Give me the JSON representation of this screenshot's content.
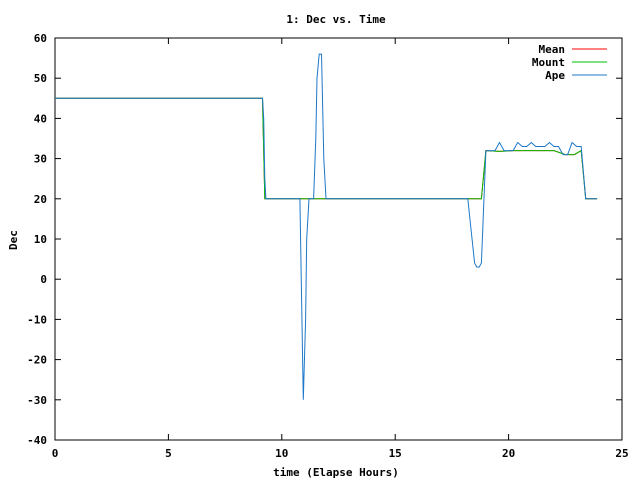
{
  "chart_data": {
    "type": "line",
    "title": "1: Dec vs. Time",
    "xlabel": "time (Elapse Hours)",
    "ylabel": "Dec",
    "xlim": [
      0,
      25
    ],
    "ylim": [
      -40,
      60
    ],
    "xticks": [
      0,
      5,
      10,
      15,
      20,
      25
    ],
    "yticks": [
      -40,
      -30,
      -20,
      -10,
      0,
      10,
      20,
      30,
      40,
      50,
      60
    ],
    "grid": false,
    "legend_position": "top-right",
    "series": [
      {
        "name": "Mean",
        "color": "#ff0000",
        "x": [
          0,
          9.15,
          9.25,
          18.3,
          18.8,
          19.0,
          19.6,
          20.2,
          21.0,
          22.0,
          22.5,
          22.9,
          23.2,
          23.4,
          23.9
        ],
        "y": [
          45,
          45,
          20,
          20,
          20,
          32,
          31.8,
          32,
          32,
          32,
          31,
          31,
          32,
          20,
          20
        ]
      },
      {
        "name": "Mount",
        "color": "#00c000",
        "x": [
          0,
          9.15,
          9.25,
          18.3,
          18.8,
          19.0,
          19.6,
          20.2,
          21.0,
          22.0,
          22.5,
          22.9,
          23.2,
          23.4,
          23.9
        ],
        "y": [
          45,
          45,
          20,
          20,
          20,
          32,
          31.8,
          32,
          32,
          32,
          31,
          31,
          32,
          20,
          20
        ]
      },
      {
        "name": "Ape",
        "color": "#1e78c8",
        "x": [
          0,
          9.15,
          9.2,
          9.25,
          9.3,
          10.8,
          10.95,
          11.05,
          11.1,
          11.2,
          11.3,
          11.4,
          11.5,
          11.55,
          11.65,
          11.75,
          11.85,
          11.95,
          12.05,
          18.2,
          18.35,
          18.5,
          18.6,
          18.7,
          18.8,
          19.0,
          19.4,
          19.6,
          19.8,
          20.0,
          20.2,
          20.4,
          20.6,
          20.8,
          21.0,
          21.2,
          21.4,
          21.6,
          21.8,
          22.0,
          22.2,
          22.4,
          22.6,
          22.8,
          23.0,
          23.2,
          23.4,
          23.6,
          23.9
        ],
        "y": [
          45,
          45,
          40,
          25,
          20,
          20,
          -30,
          -10,
          10,
          20,
          20,
          20,
          35,
          50,
          56,
          56,
          30,
          20,
          20,
          20,
          12,
          4,
          3,
          3,
          4,
          32,
          32,
          34,
          32,
          32,
          32,
          34,
          33,
          33,
          34,
          33,
          33,
          33,
          34,
          33,
          33,
          31,
          31,
          34,
          33,
          33,
          20,
          20,
          20
        ]
      }
    ]
  }
}
